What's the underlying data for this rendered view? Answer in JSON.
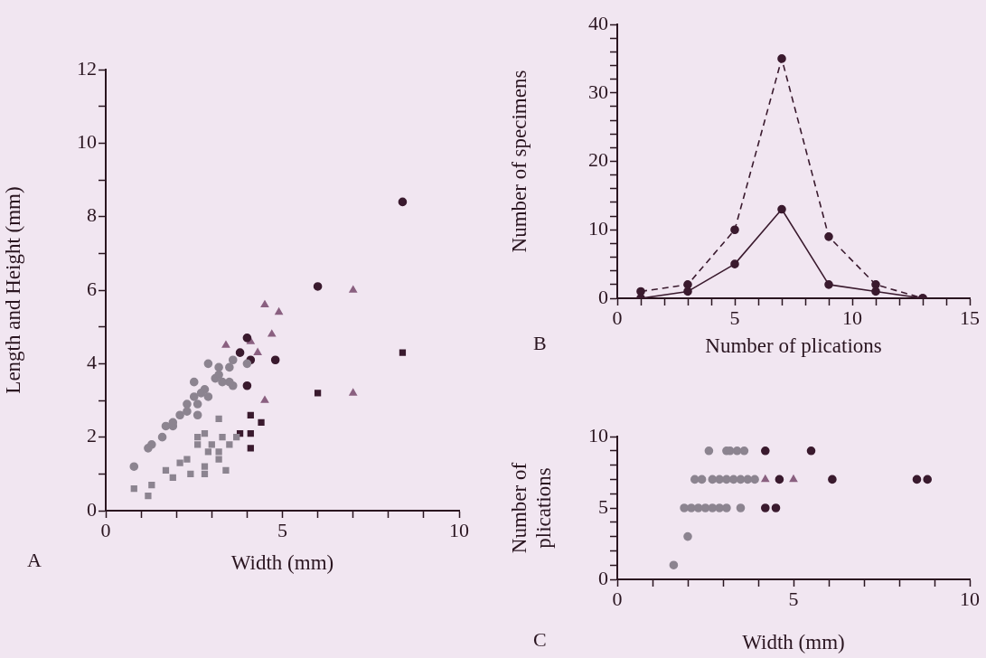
{
  "chart_data": [
    {
      "type": "scatter",
      "xlabel": "Width (mm)",
      "ylabel": "Length and Height (mm)",
      "annotations": [
        "A"
      ],
      "xlim": [
        0,
        10
      ],
      "ylim": [
        0,
        12
      ],
      "xticks": [
        0,
        {
          "value": 1,
          "label": null
        },
        {
          "value": 2,
          "label": null
        },
        {
          "value": 3,
          "label": null
        },
        {
          "value": 4,
          "label": null
        },
        5,
        {
          "value": 6,
          "label": null
        },
        {
          "value": 7,
          "label": null
        },
        {
          "value": 8,
          "label": null
        },
        {
          "value": 9,
          "label": null
        },
        10
      ],
      "yticks": [
        0,
        {
          "value": 1,
          "label": null
        },
        2,
        {
          "value": 3,
          "label": null
        },
        4,
        {
          "value": 5,
          "label": null
        },
        6,
        {
          "value": 7,
          "label": null
        },
        8,
        {
          "value": 9,
          "label": null
        },
        10,
        {
          "value": 11,
          "label": null
        },
        12
      ],
      "grid": false,
      "legend": false,
      "series": [
        {
          "color": "#8c8490",
          "marker": "circle",
          "x": [
            0.8,
            1.2,
            1.3,
            1.6,
            1.7,
            1.9,
            2.1,
            2.3,
            2.6,
            2.3,
            2.5,
            2.5,
            2.8,
            2.9,
            2.9,
            3.2,
            3.5,
            3.6,
            3.6,
            3.5,
            3.1,
            3.2,
            4.0,
            3.3,
            2.7,
            2.6,
            1.9
          ],
          "values": [
            1.2,
            1.7,
            1.8,
            2.0,
            2.3,
            2.3,
            2.6,
            2.7,
            2.6,
            2.9,
            3.1,
            3.5,
            3.3,
            3.1,
            4.0,
            3.9,
            3.9,
            4.1,
            3.4,
            3.5,
            3.6,
            3.7,
            4.0,
            3.5,
            3.2,
            2.9,
            2.4
          ]
        },
        {
          "color": "#8c8490",
          "marker": "square",
          "x": [
            0.8,
            1.2,
            1.3,
            1.7,
            1.9,
            2.1,
            2.4,
            2.3,
            2.8,
            2.8,
            2.6,
            2.6,
            2.8,
            3.2,
            3.2,
            3.4,
            3.3,
            3.5,
            3.7,
            3.2,
            2.9,
            3.0
          ],
          "values": [
            0.6,
            0.4,
            0.7,
            1.1,
            0.9,
            1.3,
            1.0,
            1.4,
            1.0,
            1.2,
            1.8,
            2.0,
            2.1,
            2.5,
            1.4,
            1.1,
            2.0,
            1.8,
            2.0,
            1.6,
            1.6,
            1.8
          ]
        },
        {
          "color": "#3a1a2e",
          "marker": "circle",
          "x": [
            8.4,
            6.0,
            4.0,
            3.8,
            4.1,
            4.8,
            4.0
          ],
          "values": [
            8.4,
            6.1,
            4.7,
            4.3,
            4.1,
            4.1,
            3.4
          ]
        },
        {
          "color": "#3a1a2e",
          "marker": "square",
          "x": [
            6.0,
            8.4,
            4.1,
            4.4,
            3.8,
            4.1,
            4.1
          ],
          "values": [
            3.2,
            4.3,
            2.6,
            2.4,
            2.1,
            2.1,
            1.7
          ]
        },
        {
          "color": "#8a6080",
          "marker": "triangle",
          "x": [
            4.9,
            4.7,
            4.1,
            4.3,
            4.5,
            3.4,
            7.0,
            4.5,
            7.0
          ],
          "values": [
            5.4,
            4.8,
            4.6,
            4.3,
            5.6,
            4.5,
            6.0,
            3.0,
            3.2
          ]
        }
      ]
    },
    {
      "type": "line",
      "xlabel": "Number of plications",
      "ylabel": "Number of specimens",
      "annotations": [
        "B"
      ],
      "xlim": [
        0,
        15
      ],
      "ylim": [
        0,
        40
      ],
      "xticks": [
        0,
        {
          "value": 1,
          "label": null
        },
        {
          "value": 2,
          "label": null
        },
        {
          "value": 3,
          "label": null
        },
        {
          "value": 4,
          "label": null
        },
        5,
        {
          "value": 6,
          "label": null
        },
        {
          "value": 7,
          "label": null
        },
        {
          "value": 8,
          "label": null
        },
        {
          "value": 9,
          "label": null
        },
        10,
        {
          "value": 11,
          "label": null
        },
        {
          "value": 12,
          "label": null
        },
        {
          "value": 13,
          "label": null
        },
        {
          "value": 14,
          "label": null
        },
        15
      ],
      "yticks": [
        0,
        {
          "value": 2,
          "label": null
        },
        {
          "value": 4,
          "label": null
        },
        {
          "value": 6,
          "label": null
        },
        {
          "value": 8,
          "label": null
        },
        10,
        {
          "value": 12,
          "label": null
        },
        {
          "value": 14,
          "label": null
        },
        {
          "value": 16,
          "label": null
        },
        {
          "value": 18,
          "label": null
        },
        20,
        {
          "value": 22,
          "label": null
        },
        {
          "value": 24,
          "label": null
        },
        {
          "value": 26,
          "label": null
        },
        {
          "value": 28,
          "label": null
        },
        30,
        {
          "value": 32,
          "label": null
        },
        {
          "value": 34,
          "label": null
        },
        {
          "value": 36,
          "label": null
        },
        {
          "value": 38,
          "label": null
        },
        40
      ],
      "grid": false,
      "legend": false,
      "x": [
        1,
        3,
        5,
        7,
        9,
        11,
        13
      ],
      "series": [
        {
          "color": "#3a1a2e",
          "marker": "circle",
          "line_style": "dashed",
          "values": [
            1,
            2,
            10,
            35,
            9,
            2,
            0
          ]
        },
        {
          "color": "#3a1a2e",
          "marker": "circle",
          "line_style": "solid",
          "values": [
            0,
            1,
            5,
            13,
            2,
            1,
            0
          ]
        }
      ]
    },
    {
      "type": "scatter",
      "xlabel": "Width (mm)",
      "ylabel": "Number of plications",
      "annotations": [
        "C"
      ],
      "xlim": [
        0,
        10
      ],
      "ylim": [
        0,
        10
      ],
      "xticks": [
        0,
        {
          "value": 1,
          "label": null
        },
        {
          "value": 2,
          "label": null
        },
        {
          "value": 3,
          "label": null
        },
        {
          "value": 4,
          "label": null
        },
        5,
        {
          "value": 6,
          "label": null
        },
        {
          "value": 7,
          "label": null
        },
        {
          "value": 8,
          "label": null
        },
        {
          "value": 9,
          "label": null
        },
        10
      ],
      "yticks": [
        0,
        {
          "value": 1,
          "label": null
        },
        {
          "value": 2,
          "label": null
        },
        {
          "value": 3,
          "label": null
        },
        {
          "value": 4,
          "label": null
        },
        5,
        {
          "value": 6,
          "label": null
        },
        {
          "value": 7,
          "label": null
        },
        {
          "value": 8,
          "label": null
        },
        {
          "value": 9,
          "label": null
        },
        10
      ],
      "grid": false,
      "legend": false,
      "series": [
        {
          "color": "#8c8490",
          "marker": "circle",
          "x": [
            2.6,
            3.1,
            3.2,
            3.4,
            3.6,
            2.2,
            2.4,
            2.7,
            2.9,
            3.1,
            3.3,
            3.5,
            3.7,
            3.9,
            1.9,
            2.1,
            2.3,
            2.5,
            2.7,
            2.9,
            3.1,
            3.5,
            2.0,
            1.6
          ],
          "values": [
            9,
            9,
            9,
            9,
            9,
            7,
            7,
            7,
            7,
            7,
            7,
            7,
            7,
            7,
            5,
            5,
            5,
            5,
            5,
            5,
            5,
            5,
            3,
            1
          ]
        },
        {
          "color": "#3a1a2e",
          "marker": "circle",
          "x": [
            4.2,
            5.5,
            4.6,
            6.1,
            8.5,
            8.8,
            4.2,
            4.5
          ],
          "values": [
            9,
            9,
            7,
            7,
            7,
            7,
            5,
            5
          ]
        },
        {
          "color": "#8a6080",
          "marker": "triangle",
          "x": [
            4.2,
            5.0
          ],
          "values": [
            7,
            7
          ]
        }
      ]
    }
  ]
}
